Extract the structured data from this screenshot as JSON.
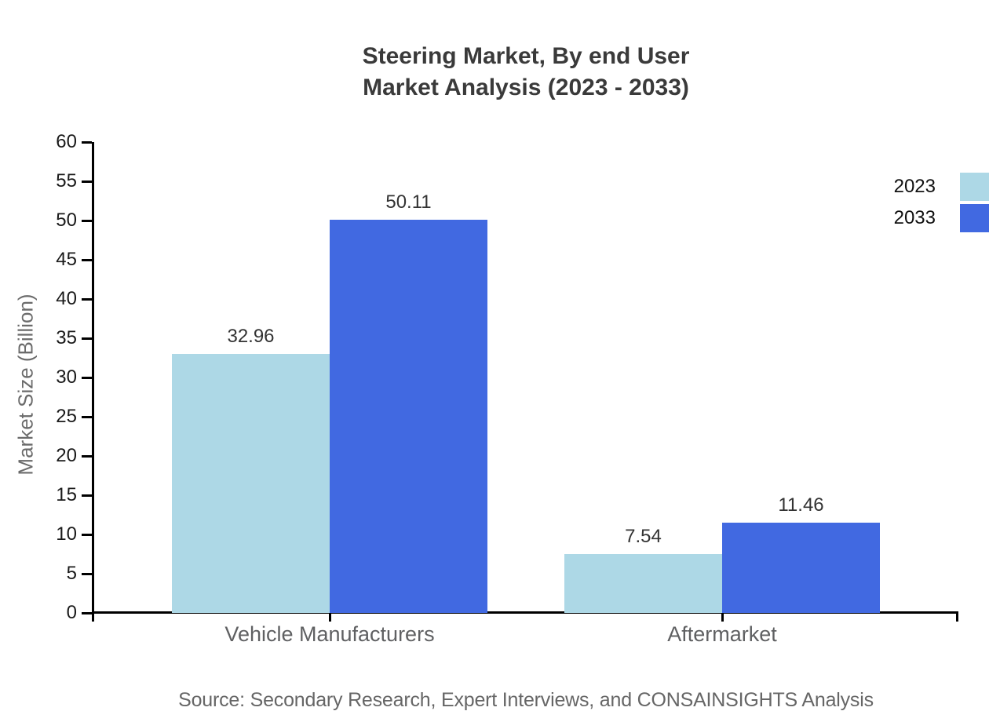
{
  "chart_data": {
    "type": "bar",
    "title": "Steering Market, By end User Market Analysis (2023 - 2033)",
    "title_lines": [
      "Steering Market, By end User",
      "Market Analysis (2023 - 2033)"
    ],
    "categories": [
      "Vehicle Manufacturers",
      "Aftermarket"
    ],
    "series": [
      {
        "name": "2023",
        "color": "#ADD8E6",
        "values": [
          32.96,
          7.54
        ]
      },
      {
        "name": "2033",
        "color": "#4169E1",
        "values": [
          50.11,
          11.46
        ]
      }
    ],
    "xlabel": "",
    "ylabel": "Market Size (Billion)",
    "ylim": [
      0,
      60
    ],
    "yticks": [
      0,
      5,
      10,
      15,
      20,
      25,
      30,
      35,
      40,
      45,
      50,
      55,
      60
    ],
    "grid": false,
    "legend_position": "right-edge",
    "value_labels": [
      "32.96",
      "50.11",
      "7.54",
      "11.46"
    ]
  },
  "source_note": "Source: Secondary Research, Expert Interviews, and CONSAINSIGHTS Analysis",
  "colors": {
    "series_2023": "#ADD8E6",
    "series_2033": "#4169E1",
    "axis": "#000000",
    "title_text": "#3a3a3a",
    "value_label_text": "#333333",
    "category_label_text": "#5f6062",
    "y_axis_title_text": "#6b6b6b",
    "source_text": "#666666",
    "background": "#ffffff"
  }
}
